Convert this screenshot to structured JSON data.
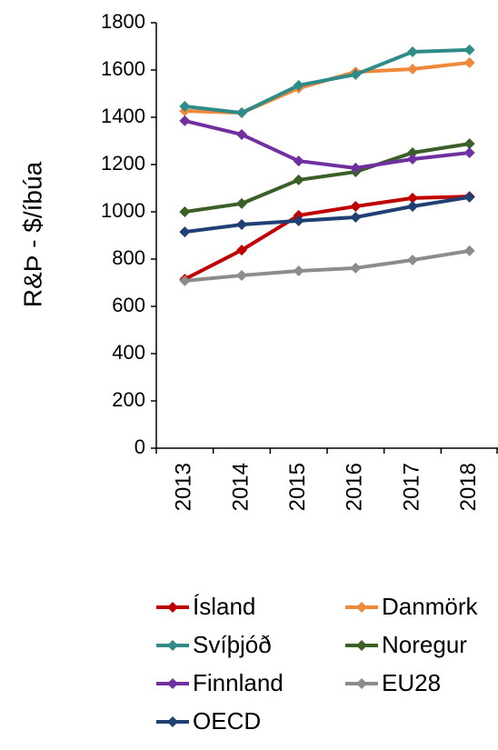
{
  "chart_data": {
    "type": "line",
    "ylabel": "R&Þ - $/íbúa",
    "categories": [
      "2013",
      "2014",
      "2015",
      "2016",
      "2017",
      "2018"
    ],
    "ylim": [
      0,
      1800
    ],
    "yticks": [
      0,
      200,
      400,
      600,
      800,
      1000,
      1200,
      1400,
      1600,
      1800
    ],
    "series": [
      {
        "name": "Ísland",
        "color": "#c00000",
        "values": [
          715,
          838,
          985,
          1023,
          1058,
          1065
        ]
      },
      {
        "name": "Danmörk",
        "color": "#f0883a",
        "values": [
          1427,
          1419,
          1523,
          1592,
          1604,
          1631
        ]
      },
      {
        "name": "Svíþjóð",
        "color": "#2e8b87",
        "values": [
          1446,
          1419,
          1535,
          1581,
          1677,
          1685
        ]
      },
      {
        "name": "Noregur",
        "color": "#3a5f27",
        "values": [
          1000,
          1035,
          1135,
          1169,
          1250,
          1288
        ]
      },
      {
        "name": "Finnland",
        "color": "#7030a0",
        "values": [
          1385,
          1327,
          1215,
          1185,
          1223,
          1250
        ]
      },
      {
        "name": "EU28",
        "color": "#8c8c8c",
        "values": [
          708,
          731,
          750,
          762,
          796,
          835
        ]
      },
      {
        "name": "OECD",
        "color": "#203f73",
        "values": [
          915,
          946,
          962,
          977,
          1023,
          1062
        ]
      }
    ]
  }
}
